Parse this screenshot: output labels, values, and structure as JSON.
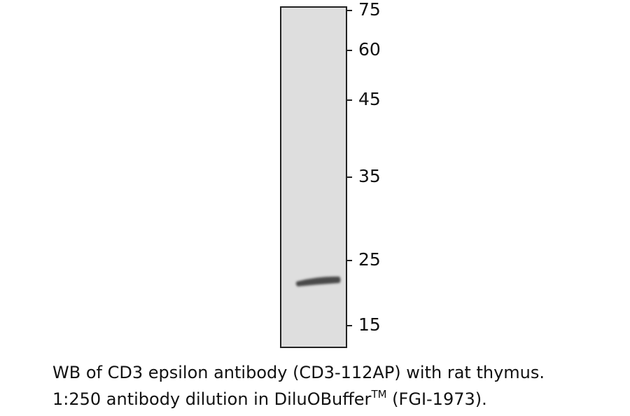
{
  "markers": [
    75,
    60,
    45,
    35,
    25,
    15
  ],
  "caption": {
    "line1": "WB of CD3 epsilon antibody (CD3-112AP) with rat thymus.",
    "line2": "1:250 antibody dilution in DiluOBuffer",
    "superscript": "TM",
    "line2_end": " (FGI-1973)."
  }
}
